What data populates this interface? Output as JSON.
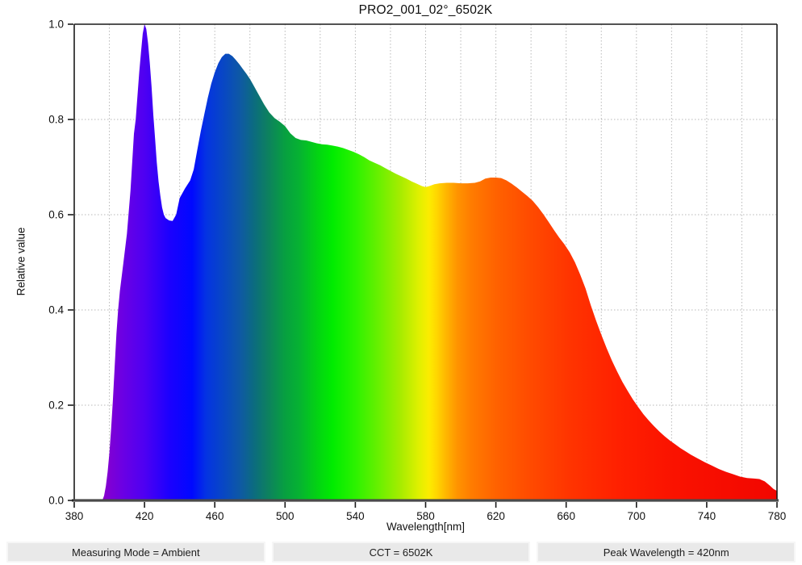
{
  "header": {
    "title": "PRO2_001_02°_6502K"
  },
  "footer": {
    "measuring_mode": "Measuring Mode = Ambient",
    "cct": "CCT = 6502K",
    "peak_wavelength": "Peak Wavelength = 420nm"
  },
  "chart_data": {
    "type": "area",
    "title": "PRO2_001_02°_6502K",
    "xlabel": "Wavelength[nm]",
    "ylabel": "Relative value",
    "xlim": [
      380,
      780
    ],
    "ylim": [
      0.0,
      1.0
    ],
    "x_ticks": [
      380,
      420,
      460,
      500,
      540,
      580,
      620,
      660,
      700,
      740,
      780
    ],
    "y_ticks": [
      0.0,
      0.2,
      0.4,
      0.6,
      0.8,
      1.0
    ],
    "x_grid_step_nm": 20,
    "grid_style": "dotted",
    "legend": null,
    "peak_wavelength_nm": 420,
    "cct_label": "6502K",
    "series": [
      {
        "name": "relative spectral power distribution",
        "x": [
          396,
          397,
          398,
          399,
          400,
          401,
          402,
          403,
          404,
          405,
          406,
          408,
          410,
          412,
          414,
          415,
          416,
          417,
          418,
          419,
          420,
          421,
          422,
          423,
          424,
          425,
          426,
          427,
          428,
          429,
          430,
          431,
          432,
          434,
          436,
          438,
          440,
          443,
          446,
          448,
          450,
          452,
          454,
          456,
          458,
          460,
          462,
          464,
          466,
          468,
          470,
          472,
          474,
          476,
          478,
          480,
          482,
          485,
          488,
          491,
          494,
          497,
          500,
          503,
          506,
          509,
          512,
          515,
          518,
          521,
          524,
          527,
          530,
          533,
          536,
          539,
          542,
          545,
          548,
          551,
          554,
          557,
          560,
          563,
          566,
          569,
          572,
          575,
          578,
          580,
          582,
          585,
          588,
          592,
          596,
          600,
          604,
          608,
          611,
          614,
          617,
          620,
          623,
          626,
          629,
          632,
          635,
          638,
          641,
          644,
          647,
          650,
          653,
          656,
          659,
          662,
          665,
          668,
          671,
          674,
          677,
          680,
          683,
          686,
          689,
          692,
          695,
          698,
          701,
          704,
          707,
          710,
          713,
          716,
          719,
          722,
          725,
          728,
          731,
          735,
          739,
          743,
          747,
          751,
          755,
          759,
          763,
          767,
          770,
          773,
          776,
          778,
          780
        ],
        "y": [
          0.0,
          0.01,
          0.03,
          0.06,
          0.1,
          0.15,
          0.21,
          0.28,
          0.35,
          0.4,
          0.44,
          0.5,
          0.56,
          0.65,
          0.77,
          0.8,
          0.85,
          0.9,
          0.94,
          0.98,
          1.0,
          0.99,
          0.96,
          0.92,
          0.87,
          0.81,
          0.76,
          0.71,
          0.67,
          0.64,
          0.615,
          0.6,
          0.593,
          0.588,
          0.587,
          0.6,
          0.635,
          0.655,
          0.672,
          0.695,
          0.735,
          0.775,
          0.81,
          0.845,
          0.875,
          0.899,
          0.918,
          0.931,
          0.938,
          0.938,
          0.933,
          0.925,
          0.916,
          0.906,
          0.896,
          0.885,
          0.872,
          0.852,
          0.832,
          0.815,
          0.803,
          0.795,
          0.786,
          0.771,
          0.761,
          0.757,
          0.756,
          0.753,
          0.75,
          0.748,
          0.747,
          0.745,
          0.743,
          0.74,
          0.736,
          0.732,
          0.727,
          0.721,
          0.714,
          0.709,
          0.704,
          0.698,
          0.692,
          0.686,
          0.681,
          0.676,
          0.67,
          0.665,
          0.66,
          0.658,
          0.66,
          0.664,
          0.666,
          0.667,
          0.667,
          0.666,
          0.666,
          0.667,
          0.67,
          0.676,
          0.678,
          0.678,
          0.677,
          0.672,
          0.665,
          0.657,
          0.648,
          0.639,
          0.629,
          0.616,
          0.601,
          0.585,
          0.568,
          0.552,
          0.538,
          0.521,
          0.5,
          0.474,
          0.445,
          0.41,
          0.378,
          0.348,
          0.32,
          0.294,
          0.271,
          0.249,
          0.23,
          0.212,
          0.196,
          0.181,
          0.168,
          0.156,
          0.145,
          0.135,
          0.126,
          0.118,
          0.11,
          0.103,
          0.096,
          0.088,
          0.08,
          0.073,
          0.066,
          0.06,
          0.055,
          0.05,
          0.047,
          0.046,
          0.045,
          0.04,
          0.031,
          0.024,
          0.02
        ]
      }
    ],
    "spectral_gradient_stops": [
      {
        "nm": 396,
        "color": "#8A00CC"
      },
      {
        "nm": 408,
        "color": "#6A00E4"
      },
      {
        "nm": 420,
        "color": "#4E00F2"
      },
      {
        "nm": 434,
        "color": "#1C00FE"
      },
      {
        "nm": 447,
        "color": "#0008FF"
      },
      {
        "nm": 455,
        "color": "#0433E3"
      },
      {
        "nm": 465,
        "color": "#0847C4"
      },
      {
        "nm": 475,
        "color": "#0E5AA2"
      },
      {
        "nm": 482,
        "color": "#0C6B80"
      },
      {
        "nm": 490,
        "color": "#0D8060"
      },
      {
        "nm": 500,
        "color": "#07A040"
      },
      {
        "nm": 508,
        "color": "#06B232"
      },
      {
        "nm": 518,
        "color": "#03D214"
      },
      {
        "nm": 527,
        "color": "#00EC00"
      },
      {
        "nm": 540,
        "color": "#2CF200"
      },
      {
        "nm": 554,
        "color": "#6CF000"
      },
      {
        "nm": 566,
        "color": "#A8EC00"
      },
      {
        "nm": 576,
        "color": "#DFF000"
      },
      {
        "nm": 582,
        "color": "#FCEC00"
      },
      {
        "nm": 586,
        "color": "#FFD800"
      },
      {
        "nm": 592,
        "color": "#FFB400"
      },
      {
        "nm": 598,
        "color": "#FF9400"
      },
      {
        "nm": 606,
        "color": "#FF7C00"
      },
      {
        "nm": 620,
        "color": "#FF6200"
      },
      {
        "nm": 640,
        "color": "#FF4A00"
      },
      {
        "nm": 662,
        "color": "#FF3400"
      },
      {
        "nm": 690,
        "color": "#FF2000"
      },
      {
        "nm": 722,
        "color": "#FA1200"
      },
      {
        "nm": 780,
        "color": "#F20600"
      }
    ],
    "colors": {
      "grid": "#b8b8b8",
      "spine": "#1a1a1a",
      "bottom_spine": "#4a4a4a",
      "text": "#111111",
      "footer_chip_bg": "#e9e9e9"
    }
  }
}
